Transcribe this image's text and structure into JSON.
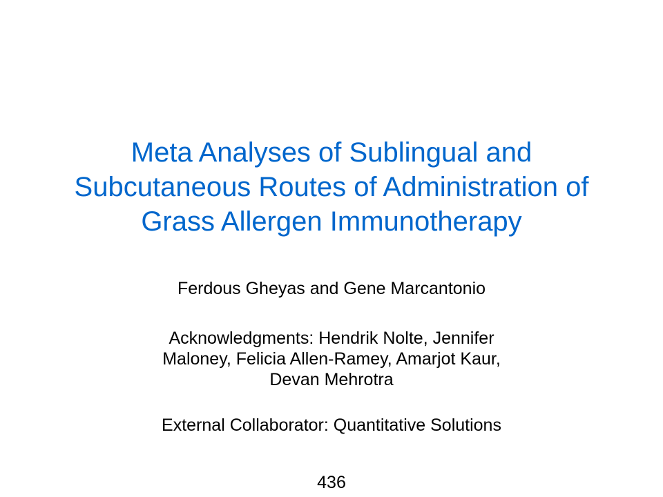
{
  "slide": {
    "title_lines": [
      "Meta Analyses of Sublingual and",
      "Subcutaneous Routes of Administration of",
      "Grass Allergen Immunotherapy"
    ],
    "authors": "Ferdous Gheyas and Gene Marcantonio",
    "acknowledgments_lines": [
      "Acknowledgments: Hendrik Nolte, Jennifer",
      "Maloney, Felicia Allen-Ramey, Amarjot Kaur,",
      "Devan Mehrotra"
    ],
    "external_collaborator": "External Collaborator: Quantitative Solutions",
    "page_number": "436"
  },
  "colors": {
    "title": "#0066cc",
    "text": "#000000",
    "background": "#ffffff"
  }
}
